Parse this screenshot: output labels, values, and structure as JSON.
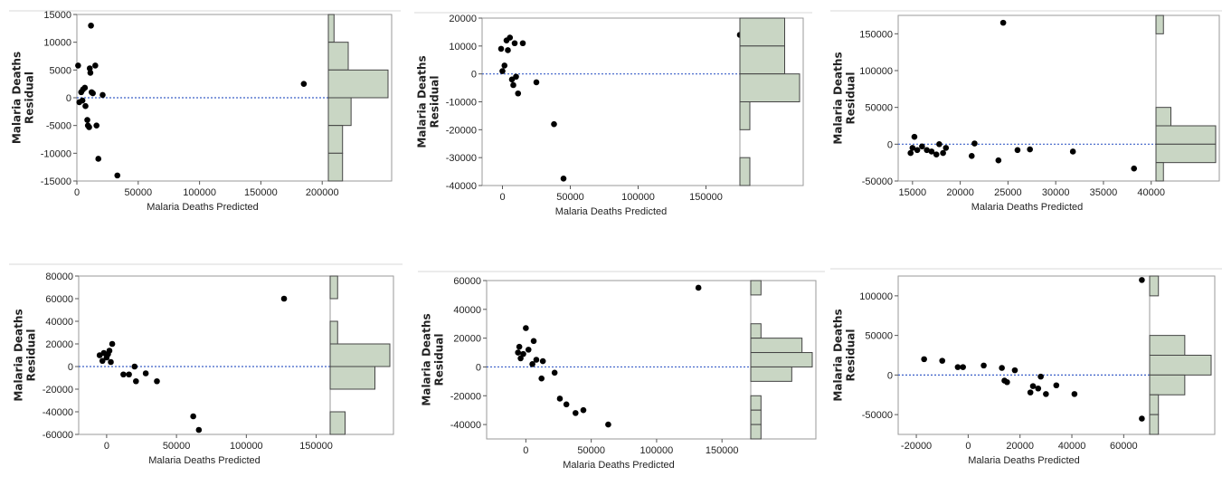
{
  "colors": {
    "points": "#000000",
    "zero_line": "#3a5fc8",
    "histogram_fill": "#c9d6c4",
    "histogram_stroke": "#444444",
    "frame": "#9a9a9a"
  },
  "chart_data": [
    {
      "type": "scatter",
      "xlabel": "Malaria Deaths Predicted",
      "ylabel": [
        "Malaria Deaths",
        "Residual"
      ],
      "xlim": [
        0,
        205000
      ],
      "ylim": [
        -15000,
        15000
      ],
      "xticks": [
        "0",
        "50000",
        "100000",
        "150000",
        "200000"
      ],
      "xtick_values": [
        0,
        50000,
        100000,
        150000,
        200000
      ],
      "yticks": [
        "15000",
        "10000",
        "5000",
        "0",
        "-5000",
        "-10000",
        "-15000"
      ],
      "ytick_values": [
        15000,
        10000,
        5000,
        0,
        -5000,
        -10000,
        -15000
      ],
      "points": [
        [
          1000,
          5800
        ],
        [
          2000,
          -800
        ],
        [
          3500,
          1000
        ],
        [
          4500,
          -500
        ],
        [
          5000,
          1500
        ],
        [
          6500,
          1800
        ],
        [
          7000,
          -1500
        ],
        [
          8500,
          -4000
        ],
        [
          9000,
          -5000
        ],
        [
          10000,
          -5300
        ],
        [
          10500,
          5300
        ],
        [
          11000,
          4500
        ],
        [
          11500,
          13000
        ],
        [
          12000,
          1000
        ],
        [
          13000,
          800
        ],
        [
          15000,
          5800
        ],
        [
          16000,
          -5000
        ],
        [
          17500,
          -11000
        ],
        [
          21000,
          500
        ],
        [
          33000,
          -14000
        ],
        [
          185000,
          2500
        ]
      ],
      "histogram": {
        "bins": [
          [
            10000,
            15000
          ],
          [
            5000,
            10000
          ],
          [
            0,
            5000
          ],
          [
            -5000,
            0
          ],
          [
            -10000,
            -5000
          ],
          [
            -15000,
            -10000
          ]
        ],
        "counts": [
          2,
          7,
          21,
          8,
          5,
          5
        ],
        "max_count": 21
      }
    },
    {
      "type": "scatter",
      "xlabel": "Malaria Deaths Predicted",
      "ylabel": [
        "Malaria Deaths",
        "Residual"
      ],
      "xlim": [
        -15000,
        175000
      ],
      "ylim": [
        -40000,
        20000
      ],
      "xticks": [
        "0",
        "50000",
        "100000",
        "150000"
      ],
      "xtick_values": [
        0,
        50000,
        100000,
        150000
      ],
      "yticks": [
        "20000",
        "10000",
        "0",
        "-10000",
        "-20000",
        "-30000",
        "-40000"
      ],
      "ytick_values": [
        20000,
        10000,
        0,
        -10000,
        -20000,
        -30000,
        -40000
      ],
      "points": [
        [
          -1000,
          9000
        ],
        [
          0,
          1000
        ],
        [
          1500,
          3000
        ],
        [
          3000,
          12000
        ],
        [
          4000,
          8500
        ],
        [
          5500,
          13000
        ],
        [
          7000,
          -2000
        ],
        [
          8000,
          -4000
        ],
        [
          9000,
          11000
        ],
        [
          10000,
          -1000
        ],
        [
          11500,
          -7000
        ],
        [
          15000,
          11000
        ],
        [
          25000,
          -3000
        ],
        [
          38000,
          -18000
        ],
        [
          45000,
          -37500
        ],
        [
          175000,
          14000
        ]
      ],
      "histogram": {
        "bins": [
          [
            10000,
            20000
          ],
          [
            0,
            10000
          ],
          [
            -10000,
            0
          ],
          [
            -20000,
            -10000
          ],
          [
            -30000,
            -20000
          ],
          [
            -40000,
            -30000
          ]
        ],
        "counts": [
          9,
          9,
          12,
          2,
          0,
          2
        ],
        "max_count": 12
      }
    },
    {
      "type": "scatter",
      "xlabel": "Malaria Deaths Predicted",
      "ylabel": [
        "Malaria Deaths",
        "Residual"
      ],
      "xlim": [
        13500,
        40500
      ],
      "ylim": [
        -50000,
        175000
      ],
      "xticks": [
        "15000",
        "20000",
        "25000",
        "30000",
        "35000",
        "40000"
      ],
      "xtick_values": [
        15000,
        20000,
        25000,
        30000,
        35000,
        40000
      ],
      "yticks": [
        "150000",
        "100000",
        "50000",
        "0",
        "-50000"
      ],
      "ytick_values": [
        150000,
        100000,
        50000,
        0,
        -50000
      ],
      "points": [
        [
          14800,
          -12000
        ],
        [
          15000,
          -5000
        ],
        [
          15200,
          10000
        ],
        [
          15500,
          -8000
        ],
        [
          16000,
          -3000
        ],
        [
          16500,
          -8000
        ],
        [
          17000,
          -10000
        ],
        [
          17500,
          -14000
        ],
        [
          17800,
          0
        ],
        [
          18200,
          -12000
        ],
        [
          18500,
          -5000
        ],
        [
          21200,
          -16000
        ],
        [
          21500,
          1000
        ],
        [
          24000,
          -22000
        ],
        [
          24500,
          165000
        ],
        [
          26000,
          -8000
        ],
        [
          27300,
          -7000
        ],
        [
          31800,
          -10000
        ],
        [
          38200,
          -33000
        ]
      ],
      "histogram": {
        "bins": [
          [
            150000,
            175000
          ],
          [
            25000,
            50000
          ],
          [
            0,
            25000
          ],
          [
            -25000,
            0
          ],
          [
            -50000,
            -25000
          ]
        ],
        "counts": [
          1,
          2,
          8,
          8,
          1
        ],
        "max_count": 8
      }
    },
    {
      "type": "scatter",
      "xlabel": "Malaria Deaths Predicted",
      "ylabel": [
        "Malaria Deaths",
        "Residual"
      ],
      "xlim": [
        -20000,
        160000
      ],
      "ylim": [
        -60000,
        80000
      ],
      "xticks": [
        "0",
        "50000",
        "100000",
        "150000"
      ],
      "xtick_values": [
        0,
        50000,
        100000,
        150000
      ],
      "yticks": [
        "80000",
        "60000",
        "40000",
        "20000",
        "0",
        "-20000",
        "-40000",
        "-60000"
      ],
      "ytick_values": [
        80000,
        60000,
        40000,
        20000,
        0,
        -20000,
        -40000,
        -60000
      ],
      "points": [
        [
          -5000,
          10000
        ],
        [
          -3000,
          5000
        ],
        [
          -2000,
          12000
        ],
        [
          0,
          8000
        ],
        [
          1000,
          11000
        ],
        [
          2000,
          14000
        ],
        [
          3000,
          4000
        ],
        [
          4000,
          20000
        ],
        [
          12000,
          -7000
        ],
        [
          16000,
          -7000
        ],
        [
          20000,
          0
        ],
        [
          21000,
          -13000
        ],
        [
          28000,
          -6000
        ],
        [
          36000,
          -13000
        ],
        [
          62000,
          -44000
        ],
        [
          66000,
          -56000
        ],
        [
          127000,
          60000
        ]
      ],
      "histogram": {
        "bins": [
          [
            60000,
            80000
          ],
          [
            40000,
            60000
          ],
          [
            20000,
            40000
          ],
          [
            0,
            20000
          ],
          [
            -20000,
            0
          ],
          [
            -40000,
            -20000
          ],
          [
            -60000,
            -40000
          ]
        ],
        "counts": [
          1,
          0,
          1,
          8,
          6,
          0,
          2
        ],
        "max_count": 8
      }
    },
    {
      "type": "scatter",
      "xlabel": "Malaria Deaths Predicted",
      "ylabel": [
        "Malaria Deaths",
        "Residual"
      ],
      "xlim": [
        -30000,
        172000
      ],
      "ylim": [
        -50000,
        60000
      ],
      "xticks": [
        "0",
        "50000",
        "100000",
        "150000"
      ],
      "xtick_values": [
        0,
        50000,
        100000,
        150000
      ],
      "yticks": [
        "60000",
        "40000",
        "20000",
        "0",
        "-20000",
        "-40000"
      ],
      "ytick_values": [
        60000,
        40000,
        20000,
        0,
        -20000,
        -40000
      ],
      "points": [
        [
          -6000,
          10000
        ],
        [
          -5000,
          14000
        ],
        [
          -4000,
          6000
        ],
        [
          -2000,
          9000
        ],
        [
          0,
          27000
        ],
        [
          2000,
          12000
        ],
        [
          5000,
          2000
        ],
        [
          6000,
          18000
        ],
        [
          8000,
          5000
        ],
        [
          12000,
          -8000
        ],
        [
          13000,
          4000
        ],
        [
          22000,
          -4000
        ],
        [
          26000,
          -22000
        ],
        [
          31000,
          -26000
        ],
        [
          38000,
          -32000
        ],
        [
          44000,
          -30000
        ],
        [
          63000,
          -40000
        ],
        [
          132000,
          55000
        ]
      ],
      "histogram": {
        "bins": [
          [
            50000,
            60000
          ],
          [
            40000,
            50000
          ],
          [
            30000,
            40000
          ],
          [
            20000,
            30000
          ],
          [
            10000,
            20000
          ],
          [
            0,
            10000
          ],
          [
            -10000,
            0
          ],
          [
            -20000,
            -10000
          ],
          [
            -30000,
            -20000
          ],
          [
            -40000,
            -30000
          ],
          [
            -50000,
            -40000
          ]
        ],
        "counts": [
          1,
          0,
          0,
          1,
          5,
          6,
          4,
          0,
          1,
          1,
          1
        ],
        "max_count": 6
      }
    },
    {
      "type": "scatter",
      "xlabel": "Malaria Deaths Predicted",
      "ylabel": [
        "Malaria Deaths",
        "Residual"
      ],
      "xlim": [
        -27000,
        70000
      ],
      "ylim": [
        -75000,
        125000
      ],
      "xticks": [
        "-20000",
        "0",
        "20000",
        "40000",
        "60000"
      ],
      "xtick_values": [
        -20000,
        0,
        20000,
        40000,
        60000
      ],
      "yticks": [
        "100000",
        "50000",
        "0",
        "-50000"
      ],
      "ytick_values": [
        100000,
        50000,
        0,
        -50000
      ],
      "points": [
        [
          -17000,
          20000
        ],
        [
          -10000,
          18000
        ],
        [
          -4000,
          10000
        ],
        [
          -2000,
          10000
        ],
        [
          6000,
          12000
        ],
        [
          13000,
          9000
        ],
        [
          14000,
          -7000
        ],
        [
          15000,
          -9000
        ],
        [
          18000,
          6000
        ],
        [
          24000,
          -22000
        ],
        [
          25000,
          -14000
        ],
        [
          27000,
          -17000
        ],
        [
          28000,
          -2000
        ],
        [
          30000,
          -24000
        ],
        [
          34000,
          -13000
        ],
        [
          41000,
          -24000
        ],
        [
          67000,
          120000
        ],
        [
          67000,
          -55000
        ]
      ],
      "histogram": {
        "bins": [
          [
            100000,
            125000
          ],
          [
            75000,
            100000
          ],
          [
            50000,
            75000
          ],
          [
            25000,
            50000
          ],
          [
            0,
            25000
          ],
          [
            -25000,
            0
          ],
          [
            -50000,
            -25000
          ],
          [
            -75000,
            -50000
          ]
        ],
        "counts": [
          1,
          0,
          0,
          4,
          7,
          4,
          1,
          1
        ],
        "max_count": 7
      }
    }
  ]
}
